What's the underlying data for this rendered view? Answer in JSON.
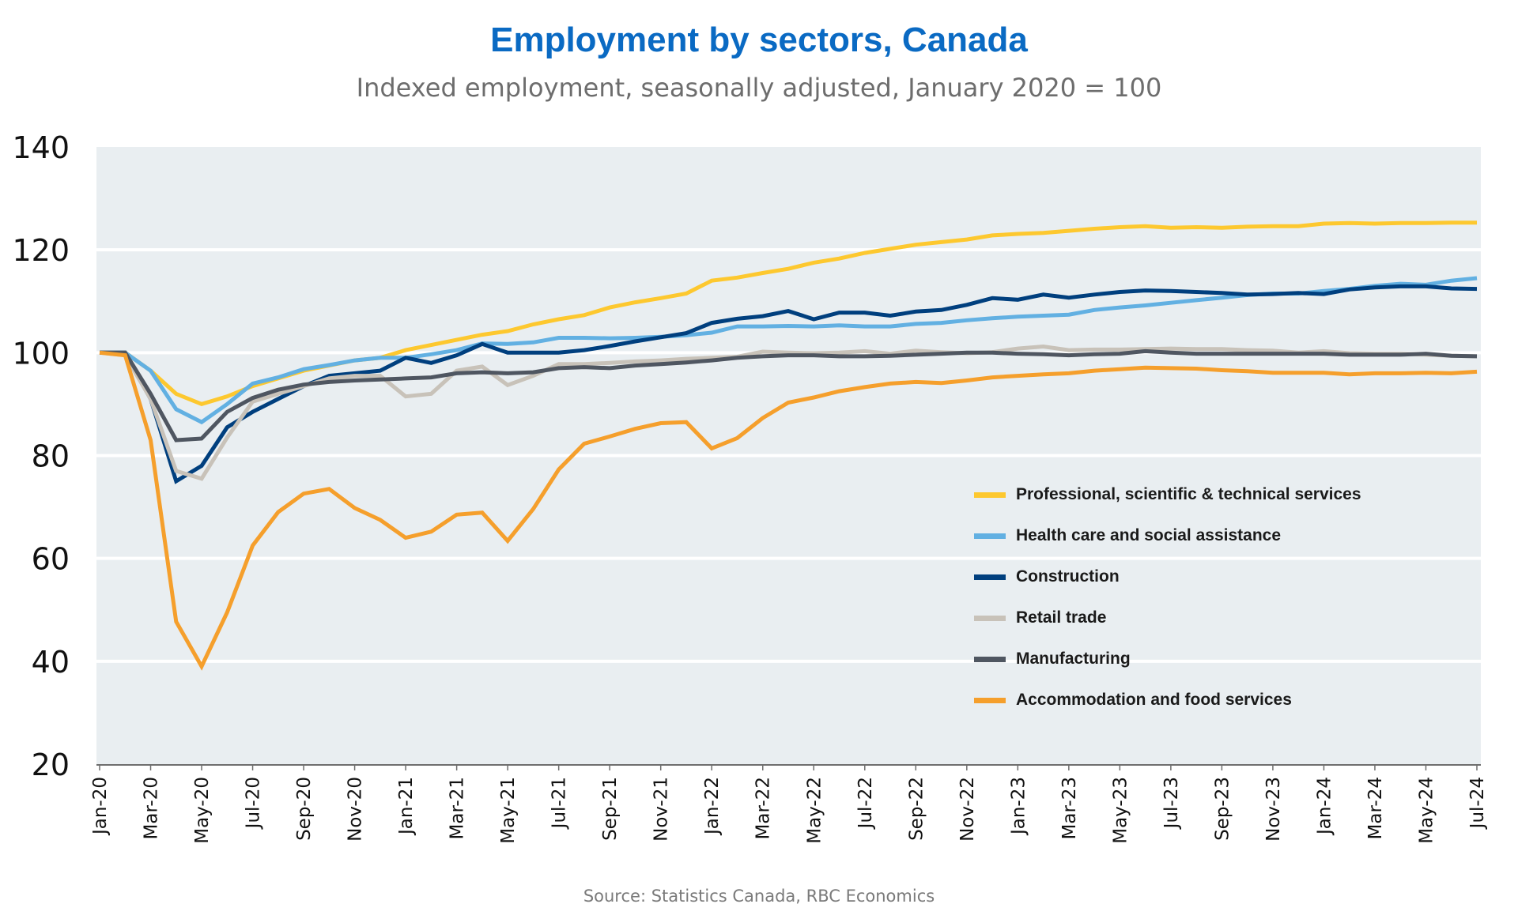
{
  "chart_data": {
    "type": "line",
    "title": "Employment by sectors, Canada",
    "subtitle": "Indexed employment, seasonally adjusted, January 2020 = 100",
    "source": "Source: Statistics Canada, RBC Economics",
    "xlabel": "",
    "ylabel": "",
    "ylim": [
      20,
      140
    ],
    "yticks": [
      140,
      120,
      100,
      80,
      60,
      40,
      20
    ],
    "grid": true,
    "legend_position": "lower-right",
    "x": [
      "Jan-20",
      "Feb-20",
      "Mar-20",
      "Apr-20",
      "May-20",
      "Jun-20",
      "Jul-20",
      "Aug-20",
      "Sep-20",
      "Oct-20",
      "Nov-20",
      "Dec-20",
      "Jan-21",
      "Feb-21",
      "Mar-21",
      "Apr-21",
      "May-21",
      "Jun-21",
      "Jul-21",
      "Aug-21",
      "Sep-21",
      "Oct-21",
      "Nov-21",
      "Dec-21",
      "Jan-22",
      "Feb-22",
      "Mar-22",
      "Apr-22",
      "May-22",
      "Jun-22",
      "Jul-22",
      "Aug-22",
      "Sep-22",
      "Oct-22",
      "Nov-22",
      "Dec-22",
      "Jan-23",
      "Feb-23",
      "Mar-23",
      "Apr-23",
      "May-23",
      "Jun-23",
      "Jul-23",
      "Aug-23",
      "Sep-23",
      "Oct-23",
      "Nov-23",
      "Dec-23",
      "Jan-24",
      "Feb-24",
      "Mar-24",
      "Apr-24",
      "May-24",
      "Jun-24",
      "Jul-24"
    ],
    "xtick_labels": [
      "Jan-20",
      "Mar-20",
      "May-20",
      "Jul-20",
      "Sep-20",
      "Nov-20",
      "Jan-21",
      "Mar-21",
      "May-21",
      "Jul-21",
      "Sep-21",
      "Nov-21",
      "Jan-22",
      "Mar-22",
      "May-22",
      "Jul-22",
      "Sep-22",
      "Nov-22",
      "Jan-23",
      "Mar-23",
      "May-23",
      "Jul-23",
      "Sep-23",
      "Nov-23",
      "Jan-24",
      "Mar-24",
      "May-24",
      "Jul-24"
    ],
    "series": [
      {
        "name": "Professional, scientific & technical services",
        "color": "#fdc82f",
        "values": [
          100,
          100,
          96.5,
          92,
          90,
          91.5,
          93.5,
          95,
          96.5,
          97.5,
          98.5,
          99,
          100.5,
          101.5,
          102.5,
          103.5,
          104.2,
          105.5,
          106.5,
          107.3,
          108.8,
          109.8,
          110.6,
          111.5,
          114,
          114.6,
          115.5,
          116.3,
          117.5,
          118.3,
          119.4,
          120.2,
          121,
          121.5,
          122,
          122.8,
          123.1,
          123.3,
          123.7,
          124.1,
          124.4,
          124.6,
          124.3,
          124.4,
          124.3,
          124.5,
          124.6,
          124.6,
          125.1,
          125.2,
          125.1,
          125.2,
          125.2,
          125.3,
          125.3
        ]
      },
      {
        "name": "Health care and social assistance",
        "color": "#62b0e2",
        "values": [
          100,
          100,
          96.5,
          89,
          86.5,
          90,
          94,
          95.2,
          96.8,
          97.6,
          98.5,
          99,
          99,
          99.7,
          100.5,
          101.8,
          101.7,
          102,
          102.9,
          102.9,
          102.8,
          102.9,
          103.1,
          103.4,
          103.9,
          105.1,
          105.1,
          105.2,
          105.1,
          105.3,
          105.1,
          105.1,
          105.6,
          105.8,
          106.3,
          106.7,
          107,
          107.2,
          107.4,
          108.3,
          108.8,
          109.2,
          109.7,
          110.2,
          110.7,
          111.2,
          111.5,
          111.5,
          112,
          112.4,
          113,
          113.4,
          113.2,
          114,
          114.5
        ]
      },
      {
        "name": "Construction",
        "color": "#003f7e",
        "values": [
          100,
          100,
          91,
          75,
          78,
          85.5,
          88.5,
          91,
          93.5,
          95.5,
          96,
          96.5,
          99,
          98,
          99.5,
          101.7,
          100,
          100,
          100,
          100.5,
          101.3,
          102.2,
          103,
          103.8,
          105.8,
          106.6,
          107.1,
          108.1,
          106.5,
          107.8,
          107.8,
          107.2,
          108,
          108.3,
          109.3,
          110.6,
          110.3,
          111.3,
          110.7,
          111.3,
          111.8,
          112.1,
          112,
          111.8,
          111.6,
          111.3,
          111.4,
          111.6,
          111.4,
          112.3,
          112.7,
          112.9,
          112.9,
          112.5,
          112.4
        ]
      },
      {
        "name": "Retail trade",
        "color": "#c8c2b9",
        "values": [
          100,
          99.5,
          91,
          77,
          75.5,
          83.5,
          90.5,
          92,
          93.5,
          95,
          95.5,
          95.5,
          91.5,
          92,
          96.5,
          97.3,
          93.7,
          95.5,
          97.8,
          97.8,
          98,
          98.3,
          98.5,
          98.8,
          99,
          99.2,
          100.2,
          100,
          99.9,
          100,
          100.3,
          99.8,
          100.4,
          100.1,
          99.9,
          100.1,
          100.8,
          101.2,
          100.5,
          100.6,
          100.6,
          100.7,
          100.8,
          100.7,
          100.7,
          100.5,
          100.4,
          100,
          100.3,
          99.9,
          99.8,
          99.8,
          99.6,
          99.4,
          99.3
        ]
      },
      {
        "name": "Manufacturing",
        "color": "#4f5661",
        "values": [
          100,
          100,
          92,
          83,
          83.3,
          88.5,
          91.2,
          92.8,
          93.8,
          94.3,
          94.6,
          94.8,
          95,
          95.2,
          96,
          96.2,
          96,
          96.2,
          97,
          97.2,
          97,
          97.5,
          97.8,
          98.1,
          98.5,
          99,
          99.3,
          99.5,
          99.5,
          99.3,
          99.3,
          99.4,
          99.6,
          99.8,
          100,
          100,
          99.8,
          99.7,
          99.5,
          99.7,
          99.8,
          100.3,
          100,
          99.8,
          99.8,
          99.8,
          99.8,
          99.8,
          99.8,
          99.6,
          99.6,
          99.6,
          99.8,
          99.4,
          99.3
        ]
      },
      {
        "name": "Accommodation and food services",
        "color": "#f59f2c",
        "values": [
          100,
          99.5,
          83,
          47.7,
          39,
          49.5,
          62.5,
          69,
          72.6,
          73.5,
          69.8,
          67.5,
          64,
          65.2,
          68.5,
          68.9,
          63.4,
          69.6,
          77.3,
          82.3,
          83.7,
          85.2,
          86.3,
          86.5,
          81.4,
          83.4,
          87.3,
          90.3,
          91.3,
          92.5,
          93.3,
          94,
          94.3,
          94.1,
          94.6,
          95.2,
          95.5,
          95.8,
          96,
          96.5,
          96.8,
          97.1,
          97,
          96.9,
          96.6,
          96.4,
          96.1,
          96.1,
          96.1,
          95.8,
          96,
          96,
          96.1,
          96,
          96.3
        ]
      }
    ]
  }
}
